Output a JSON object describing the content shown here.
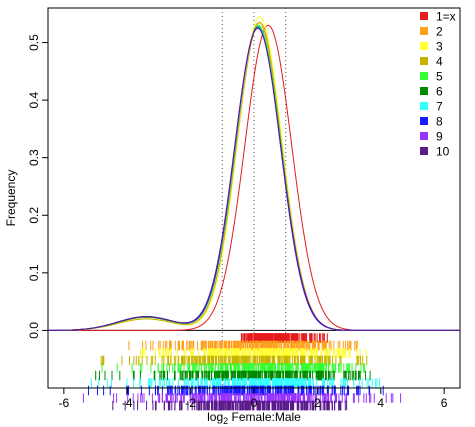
{
  "chart_data": {
    "type": "line",
    "xlabel": "log2 Female:Male",
    "xlabel_parts": {
      "base": "log",
      "subscript": "2",
      "rest": " Female:Male"
    },
    "ylabel": "Frequency",
    "xlim": [
      -6.5,
      6.5
    ],
    "ylim": [
      -0.1,
      0.56
    ],
    "xticks": [
      -6,
      -4,
      -2,
      0,
      2,
      4,
      6
    ],
    "yticks": [
      0.0,
      0.1,
      0.2,
      0.3,
      0.4,
      0.5
    ],
    "ytick_labels": [
      "0.0",
      "0.1",
      "0.2",
      "0.3",
      "0.4",
      "0.5"
    ],
    "reference_lines_x": [
      -1,
      0,
      1
    ],
    "grid": false,
    "legend_position": "top-right",
    "series": [
      {
        "name": "1=x",
        "color": "#e41a1c",
        "mean": 0.45,
        "sd": 0.74,
        "peak": 0.53,
        "tail_weight": 0.0,
        "rug_min": -0.4,
        "rug_max": 2.4
      },
      {
        "name": "2",
        "color": "#ff9f1a",
        "mean": 0.18,
        "sd": 0.71,
        "peak": 0.535,
        "tail_weight": 0.02,
        "rug_min": -4.6,
        "rug_max": 3.4
      },
      {
        "name": "3",
        "color": "#ffff33",
        "mean": 0.18,
        "sd": 0.7,
        "peak": 0.545,
        "tail_weight": 0.02,
        "rug_min": -4.7,
        "rug_max": 3.6
      },
      {
        "name": "4",
        "color": "#c8b400",
        "mean": 0.16,
        "sd": 0.71,
        "peak": 0.535,
        "tail_weight": 0.02,
        "rug_min": -4.9,
        "rug_max": 3.8
      },
      {
        "name": "5",
        "color": "#33ff33",
        "mean": 0.14,
        "sd": 0.72,
        "peak": 0.53,
        "tail_weight": 0.023,
        "rug_min": -4.8,
        "rug_max": 3.5
      },
      {
        "name": "6",
        "color": "#008800",
        "mean": 0.13,
        "sd": 0.72,
        "peak": 0.528,
        "tail_weight": 0.023,
        "rug_min": -5.0,
        "rug_max": 3.9
      },
      {
        "name": "7",
        "color": "#33ffff",
        "mean": 0.13,
        "sd": 0.72,
        "peak": 0.527,
        "tail_weight": 0.024,
        "rug_min": -5.2,
        "rug_max": 4.0
      },
      {
        "name": "8",
        "color": "#1a1aff",
        "mean": 0.12,
        "sd": 0.72,
        "peak": 0.526,
        "tail_weight": 0.024,
        "rug_min": -5.3,
        "rug_max": 4.2
      },
      {
        "name": "9",
        "color": "#9933ff",
        "mean": 0.12,
        "sd": 0.73,
        "peak": 0.525,
        "tail_weight": 0.024,
        "rug_min": -5.6,
        "rug_max": 4.8
      },
      {
        "name": "10",
        "color": "#5a1a8a",
        "mean": 0.12,
        "sd": 0.73,
        "peak": 0.525,
        "tail_weight": 0.024,
        "rug_min": -4.6,
        "rug_max": 3.0
      }
    ]
  }
}
